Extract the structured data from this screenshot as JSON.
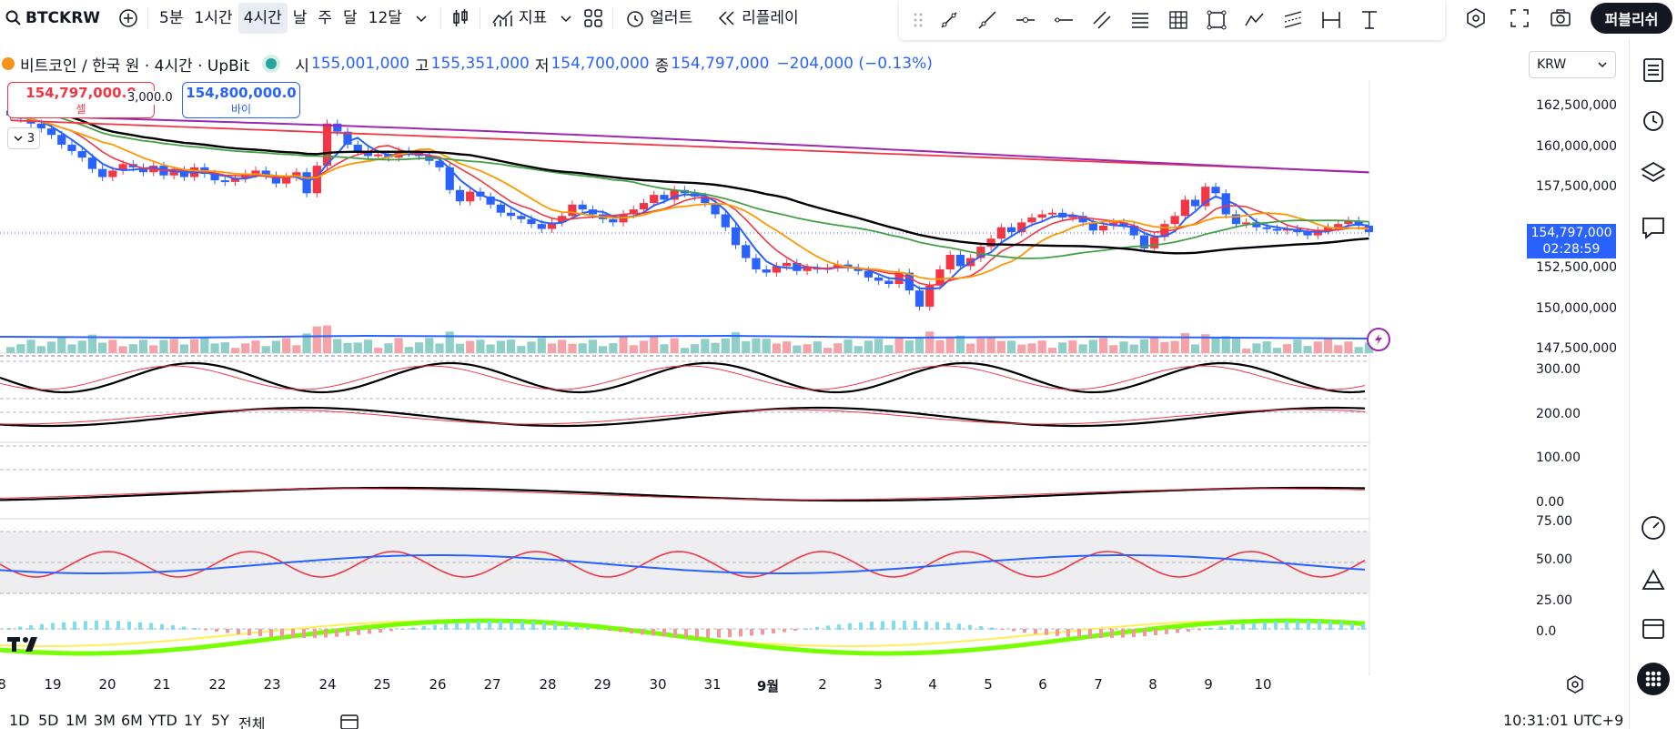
{
  "toolbar": {
    "symbol": "BTCKRW",
    "intervals": [
      {
        "label": "5분",
        "active": false
      },
      {
        "label": "1시간",
        "active": false
      },
      {
        "label": "4시간",
        "active": true
      },
      {
        "label": "날",
        "active": false
      },
      {
        "label": "주",
        "active": false
      },
      {
        "label": "달",
        "active": false
      },
      {
        "label": "12달",
        "active": false
      }
    ],
    "indicators_label": "지표",
    "alert_label": "얼러트",
    "replay_label": "리플레이",
    "publish_label": "퍼블리쉬"
  },
  "legend": {
    "title": "비트코인 / 한국 원 · 4시간 · UpBit",
    "open_key": "시",
    "open": "155,001,000",
    "high_key": "고",
    "high": "155,351,000",
    "low_key": "저",
    "low": "154,700,000",
    "close_key": "종",
    "close": "154,797,000",
    "change": "−204,000 (−0.13%)"
  },
  "trade": {
    "sell_price": "154,797,000.0",
    "sell_label": "셀",
    "buy_price": "154,800,000.0",
    "buy_label": "바이",
    "spread": "3,000.0",
    "collapse_count": "3"
  },
  "currency": "KRW",
  "price_axis": [
    "162,500,000",
    "160,000,000",
    "157,500,000",
    "152,500,000",
    "150,000,000",
    "147,500,000"
  ],
  "current_price": {
    "price": "154,797,000",
    "countdown": "02:28:59"
  },
  "stoch_axis": [
    "300.00",
    "200.00",
    "100.00",
    "0.00"
  ],
  "rsi_axis": [
    "75.00",
    "50.00",
    "25.00"
  ],
  "macd_axis": [
    "0.0"
  ],
  "time_axis": [
    "8",
    "19",
    "20",
    "21",
    "22",
    "23",
    "24",
    "25",
    "26",
    "27",
    "28",
    "29",
    "30",
    "31",
    "9월",
    "2",
    "3",
    "4",
    "5",
    "6",
    "7",
    "8",
    "9",
    "10"
  ],
  "ranges": [
    "1D",
    "5D",
    "1M",
    "3M",
    "6M",
    "YTD",
    "1Y",
    "5Y",
    "전체"
  ],
  "clock": "10:31:01 UTC+9",
  "colors": {
    "up": "#f23645",
    "down": "#2962ff",
    "vol_up": "#f5a3a8",
    "vol_down": "#8fcfc8",
    "ma_fast": "#2962ff",
    "ma_red": "#f23645",
    "ma_orange": "#ff9800",
    "ma_green": "#43a047",
    "ma_black": "#000000",
    "ma_purple": "#9c27b0"
  }
}
